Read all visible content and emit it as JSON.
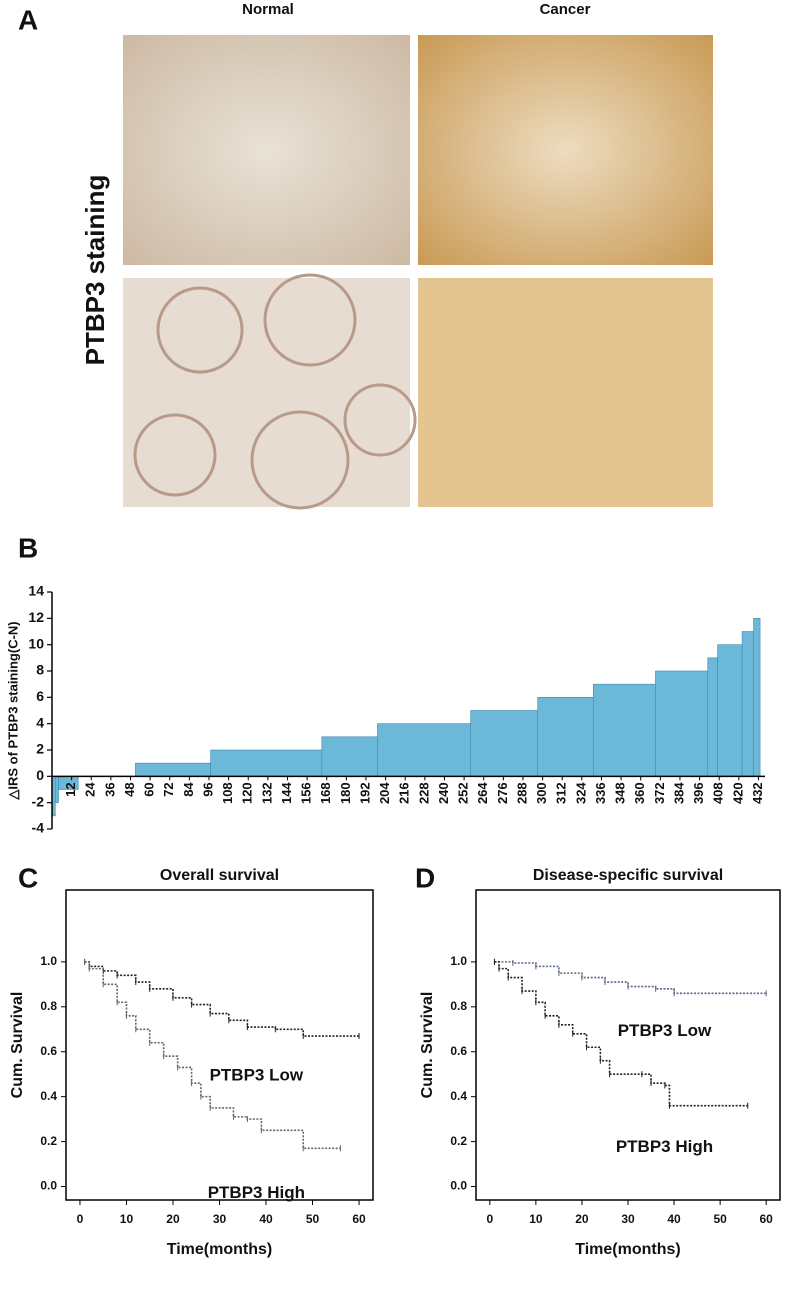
{
  "figure": {
    "panel_labels": [
      "A",
      "B",
      "C",
      "D"
    ],
    "columns": [
      "Normal",
      "Cancer"
    ],
    "row_label": "PTBP3 staining"
  },
  "chart_data": [
    {
      "type": "histogram",
      "y_label": "△IRS of  PTBP3 staining(C-N)",
      "color": "#6cb8d8",
      "bins": [
        0,
        2,
        4,
        16,
        51,
        97,
        165,
        199,
        256,
        297,
        331,
        369,
        401,
        407,
        422,
        429,
        433
      ],
      "values": [
        -3,
        -2,
        -1,
        0,
        1,
        2,
        3,
        4,
        5,
        6,
        7,
        8,
        9,
        10,
        11,
        12
      ],
      "xlim": [
        0,
        436
      ],
      "xticks": [
        12,
        24,
        36,
        48,
        60,
        72,
        84,
        96,
        108,
        120,
        132,
        144,
        156,
        168,
        180,
        192,
        204,
        216,
        228,
        240,
        252,
        264,
        276,
        288,
        300,
        312,
        324,
        336,
        348,
        360,
        372,
        384,
        396,
        408,
        420,
        432
      ],
      "ylim": [
        -4,
        14
      ],
      "yticks": [
        -4,
        -2,
        0,
        2,
        4,
        6,
        8,
        10,
        12,
        14
      ]
    },
    {
      "type": "line",
      "step": true,
      "title": "Overall survival",
      "x_label": "Time(months)",
      "y_label": "Cum. Survival",
      "xlim": [
        -3,
        63
      ],
      "xticks": [
        0,
        10,
        20,
        30,
        40,
        50,
        60
      ],
      "ylim": [
        -0.06,
        1.32
      ],
      "yticks": [
        {
          "value": 0,
          "label": "0.0"
        },
        0.2,
        0.4,
        0.6,
        0.8,
        {
          "value": 1,
          "label": "1.0"
        }
      ],
      "series": [
        {
          "name": "PTBP3 Low",
          "color": "#222222",
          "x": [
            1,
            2,
            5,
            8,
            12,
            15,
            20,
            24,
            28,
            32,
            36,
            42,
            48,
            60
          ],
          "values": [
            1,
            0.98,
            0.96,
            0.94,
            0.91,
            0.88,
            0.84,
            0.81,
            0.77,
            0.74,
            0.71,
            0.7,
            0.67,
            0.67
          ]
        },
        {
          "name": "PTBP3 High",
          "color": "#666666",
          "x": [
            1,
            2,
            5,
            8,
            10,
            12,
            15,
            18,
            21,
            24,
            26,
            28,
            33,
            36,
            39,
            48,
            56
          ],
          "values": [
            1,
            0.97,
            0.9,
            0.82,
            0.76,
            0.7,
            0.64,
            0.58,
            0.53,
            0.46,
            0.4,
            0.35,
            0.31,
            0.3,
            0.25,
            0.17,
            0.17
          ]
        }
      ]
    },
    {
      "type": "line",
      "step": true,
      "title": "Disease-specific survival",
      "x_label": "Time(months)",
      "y_label": "Cum. Survival",
      "xlim": [
        -3,
        63
      ],
      "xticks": [
        0,
        10,
        20,
        30,
        40,
        50,
        60
      ],
      "ylim": [
        -0.06,
        1.32
      ],
      "yticks": [
        {
          "value": 0,
          "label": "0.0"
        },
        0.2,
        0.4,
        0.6,
        0.8,
        {
          "value": 1,
          "label": "1.0"
        }
      ],
      "series": [
        {
          "name": "PTBP3 Low",
          "color": "#5a6788",
          "x": [
            1,
            5,
            10,
            15,
            20,
            25,
            30,
            36,
            40,
            60
          ],
          "values": [
            1,
            0.995,
            0.98,
            0.95,
            0.93,
            0.91,
            0.89,
            0.88,
            0.86,
            0.86
          ]
        },
        {
          "name": "PTBP3 High",
          "color": "#222222",
          "x": [
            1,
            2,
            4,
            7,
            10,
            12,
            15,
            18,
            21,
            24,
            26,
            33,
            35,
            38,
            39,
            56
          ],
          "values": [
            1,
            0.97,
            0.93,
            0.87,
            0.82,
            0.76,
            0.72,
            0.68,
            0.62,
            0.56,
            0.5,
            0.5,
            0.46,
            0.45,
            0.36,
            0.36
          ]
        }
      ]
    }
  ]
}
